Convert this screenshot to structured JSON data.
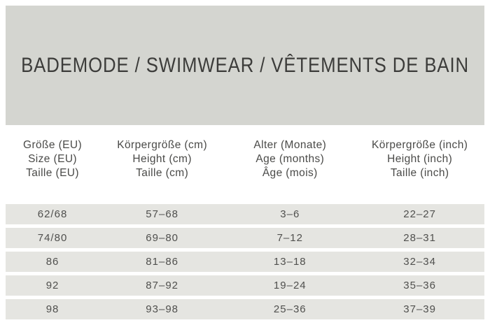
{
  "title": "BADEMODE / SWIMWEAR / VÊTEMENTS DE BAIN",
  "table": {
    "columns": [
      {
        "name": "size-eu",
        "lines": [
          "Größe (EU)",
          "Size (EU)",
          "Taille (EU)"
        ]
      },
      {
        "name": "height-cm",
        "lines": [
          "Körpergröße (cm)",
          "Height (cm)",
          "Taille (cm)"
        ]
      },
      {
        "name": "age-months",
        "lines": [
          "Alter (Monate)",
          "Age (months)",
          "Âge (mois)"
        ]
      },
      {
        "name": "height-inch",
        "lines": [
          "Körpergröße (inch)",
          "Height (inch)",
          "Taille (inch)"
        ]
      }
    ],
    "rows": [
      [
        "62/68",
        "57–68",
        "3–6",
        "22–27"
      ],
      [
        "74/80",
        "69–80",
        "7–12",
        "28–31"
      ],
      [
        "86",
        "81–86",
        "13–18",
        "32–34"
      ],
      [
        "92",
        "87–92",
        "19–24",
        "35–36"
      ],
      [
        "98",
        "93–98",
        "25–36",
        "37–39"
      ]
    ]
  },
  "colors": {
    "title_band_background": "#d4d5d0",
    "row_background": "#e5e5e1",
    "title_text": "#3c3c3a",
    "header_text": "#4a4a48",
    "cell_text": "#50504e",
    "page_background": "#ffffff"
  }
}
